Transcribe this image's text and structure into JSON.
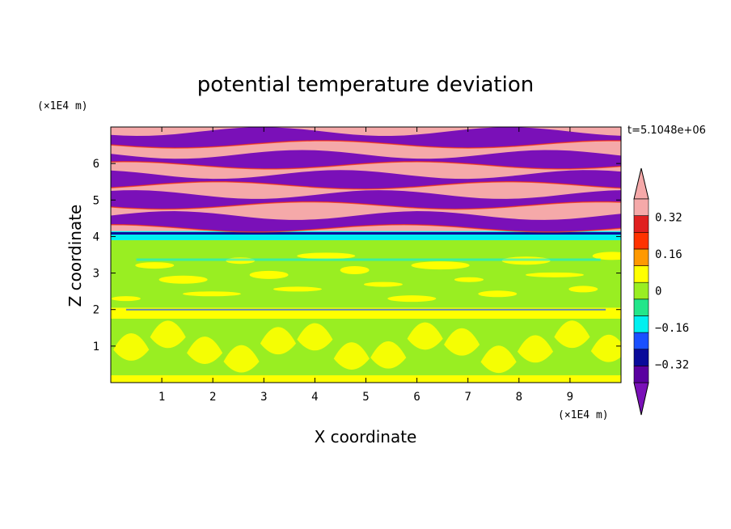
{
  "chart_data": {
    "type": "heatmap",
    "title": "potential temperature deviation",
    "xlabel": "X coordinate",
    "ylabel": "Z coordinate",
    "x_unit": "(×1E4 m)",
    "y_unit": "(×1E4 m)",
    "time_label": "t=5.1048e+06",
    "xlim": [
      0,
      10
    ],
    "ylim": [
      0,
      7
    ],
    "x_ticks": [
      1,
      2,
      3,
      4,
      5,
      6,
      7,
      8,
      9
    ],
    "y_ticks": [
      1,
      2,
      3,
      4,
      5,
      6
    ],
    "colorbar": {
      "levels": [
        -0.4,
        -0.32,
        -0.24,
        -0.16,
        -0.08,
        0,
        0.08,
        0.16,
        0.24,
        0.32,
        0.4
      ],
      "colors": [
        "#5a00a0",
        "#0a0a9a",
        "#1a50ff",
        "#00f0f0",
        "#22e68a",
        "#99ee22",
        "#ffff00",
        "#ff9900",
        "#ff3300",
        "#e02020",
        "#f5a9a9"
      ],
      "under_color": "#7a10b8",
      "over_color": "#f5a9a9",
      "tick_labels": [
        "0.32",
        "0.16",
        "0",
        "−0.16",
        "−0.32"
      ],
      "tick_values": [
        0.32,
        0.16,
        0,
        -0.16,
        -0.32
      ]
    },
    "bands": [
      {
        "z": [
          0.0,
          0.2
        ],
        "value": 0.08
      },
      {
        "z": [
          0.2,
          1.75
        ],
        "value": 0.04
      },
      {
        "z": [
          1.75,
          2.05
        ],
        "value": 0.1
      },
      {
        "z": [
          2.05,
          3.9
        ],
        "value": 0.05
      },
      {
        "z": [
          3.9,
          4.15
        ],
        "value": -0.12
      },
      {
        "z": [
          4.15,
          7.0
        ],
        "value": 0.45
      }
    ],
    "purple_layers": [
      {
        "z": 4.4,
        "thickness": 0.35
      },
      {
        "z": 5.0,
        "thickness": 0.3
      },
      {
        "z": 5.55,
        "thickness": 0.3
      },
      {
        "z": 6.1,
        "thickness": 0.3
      },
      {
        "z": 6.7,
        "thickness": 0.35
      }
    ]
  }
}
